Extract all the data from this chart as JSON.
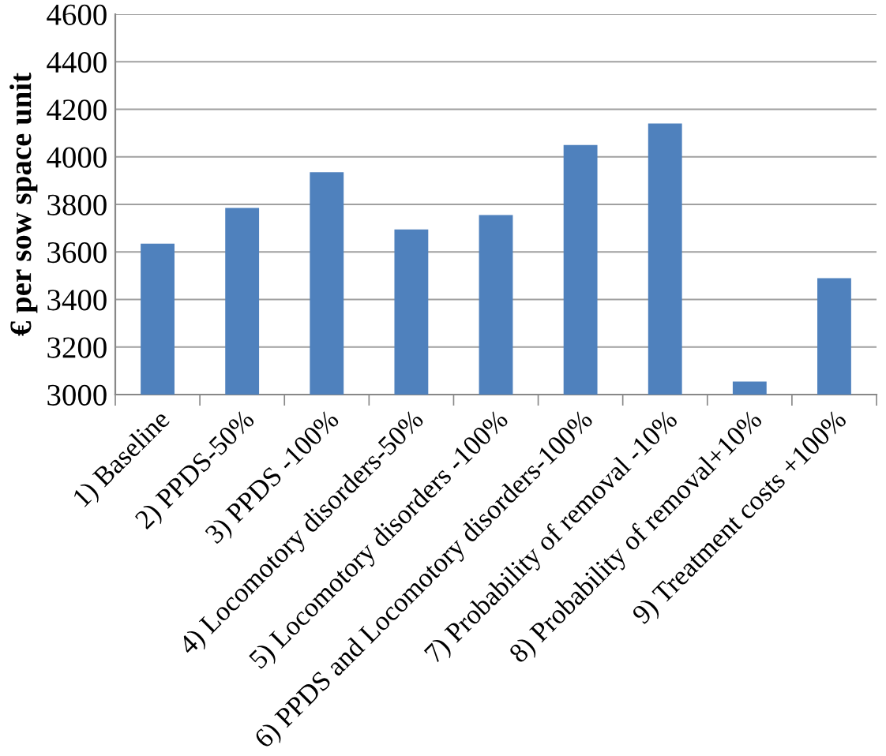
{
  "chart_data": {
    "type": "bar",
    "ylabel": "€ per sow space unit",
    "categories": [
      "1) Baseline",
      "2) PPDS-50%",
      "3) PPDS -100%",
      "4) Locomotory disorders-50%",
      "5) Locomotory disorders -100%",
      "6) PPDS and Locomotory disorders-100%",
      "7) Probability of removal -10%",
      "8) Probability of removal+10%",
      "9) Treatment costs +100%"
    ],
    "values": [
      3635,
      3785,
      3935,
      3695,
      3755,
      4050,
      4140,
      3055,
      3490
    ],
    "color": "#4f81bd",
    "ylim": [
      3000,
      4600
    ],
    "yticks": [
      3000,
      3200,
      3400,
      3600,
      3800,
      4000,
      4200,
      4400,
      4600
    ],
    "grid": "y",
    "legend": false
  }
}
